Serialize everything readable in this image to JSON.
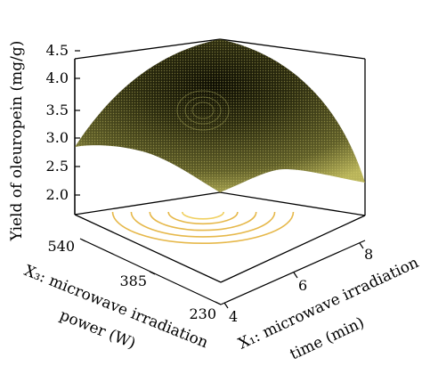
{
  "chart_data": {
    "type": "surface",
    "zlabel": "Yield of oleuropein (mg/g)",
    "x1label_line1": "X₁: microwave irradiation",
    "x1label_line2": "time (min)",
    "x3label_line1": "X₃: microwave irradiation",
    "x3label_line2": "power (W)",
    "z_ticks": [
      "2.0",
      "2.5",
      "3.0",
      "3.5",
      "4.0",
      "4.5"
    ],
    "x1_ticks": [
      "4",
      "6",
      "8"
    ],
    "x3_ticks": [
      "540",
      "385",
      "230"
    ],
    "x1_range": [
      4,
      8
    ],
    "x3_range": [
      230,
      540
    ],
    "zlim": [
      2.0,
      4.5
    ],
    "surface": {
      "x1": [
        4,
        5,
        6,
        7,
        8
      ],
      "x3": [
        230,
        307.5,
        385,
        462.5,
        540
      ],
      "yield": [
        [
          2.2,
          2.75,
          3.0,
          2.9,
          2.45
        ],
        [
          2.8,
          3.4,
          3.65,
          3.55,
          3.05
        ],
        [
          3.0,
          3.7,
          4.0,
          3.9,
          3.35
        ],
        [
          2.95,
          3.6,
          3.9,
          3.8,
          3.2
        ],
        [
          2.9,
          3.2,
          3.45,
          3.3,
          2.95
        ]
      ]
    },
    "contour_levels": [
      3.2,
      3.4,
      3.6,
      3.8,
      3.95
    ],
    "grid": false,
    "colors": {
      "surface_low": "#e8e070",
      "surface_high": "#141400",
      "contour": "#e6b84a",
      "contour_inner": "#f0d060"
    }
  }
}
